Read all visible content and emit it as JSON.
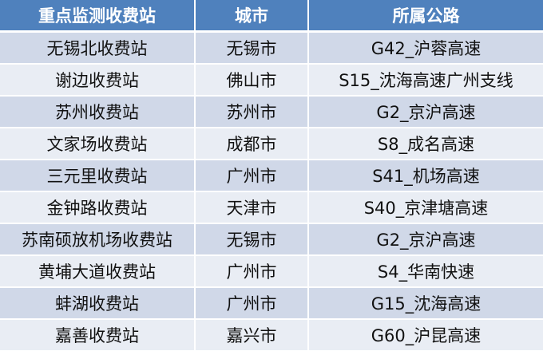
{
  "colors": {
    "header": "#4F81BD",
    "row_odd": "#D0D8E8",
    "row_even": "#E9EDF4"
  },
  "headers": [
    "重点监测收费站",
    "城市",
    "所属公路"
  ],
  "rows": [
    [
      "无锡北收费站",
      "无锡市",
      "G42_沪蓉高速"
    ],
    [
      "谢边收费站",
      "佛山市",
      "S15_沈海高速广州支线"
    ],
    [
      "苏州收费站",
      "苏州市",
      "G2_京沪高速"
    ],
    [
      "文家场收费站",
      "成都市",
      "S8_成名高速"
    ],
    [
      "三元里收费站",
      "广州市",
      "S41_机场高速"
    ],
    [
      "金钟路收费站",
      "天津市",
      "S40_京津塘高速"
    ],
    [
      "苏南硕放机场收费站",
      "无锡市",
      "G2_京沪高速"
    ],
    [
      "黄埔大道收费站",
      "广州市",
      "S4_华南快速"
    ],
    [
      "蚌湖收费站",
      "广州市",
      "G15_沈海高速"
    ],
    [
      "嘉善收费站",
      "嘉兴市",
      "G60_沪昆高速"
    ]
  ]
}
